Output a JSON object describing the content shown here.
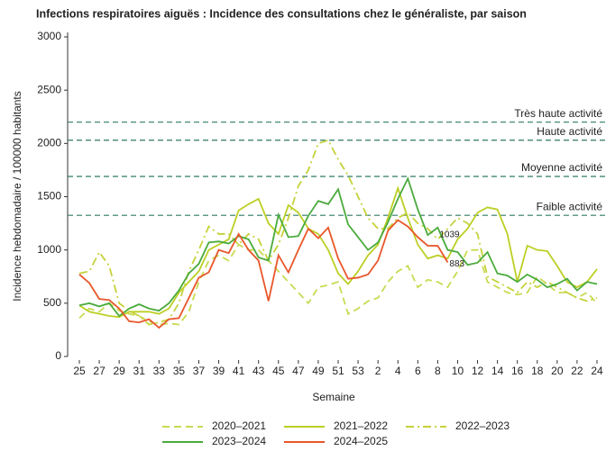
{
  "chart_data": {
    "type": "line",
    "title": "Infections respiratoires aiguës : Incidence des consultations chez le généraliste, par saison",
    "x_label": "Semaine",
    "y_label": "Incidence hebdomadaire / 100000 habitants",
    "categories": [
      "25",
      null,
      "27",
      null,
      "29",
      null,
      "31",
      null,
      "33",
      null,
      "35",
      null,
      "37",
      null,
      "39",
      null,
      "41",
      null,
      "43",
      null,
      "45",
      null,
      "47",
      null,
      "49",
      null,
      "51",
      null,
      "53",
      null,
      "2",
      null,
      "4",
      null,
      "6",
      null,
      "8",
      null,
      "10",
      null,
      "12",
      null,
      "14",
      null,
      "16",
      null,
      "18",
      null,
      "20",
      null,
      "22",
      null,
      "24"
    ],
    "ylim": [
      0,
      3000
    ],
    "yticks": [
      0,
      500,
      1000,
      1500,
      2000,
      2500,
      3000
    ],
    "thresholds": [
      {
        "label": "Très haute activité",
        "value": 2200
      },
      {
        "label": "Haute activité",
        "value": 2030
      },
      {
        "label": "Moyenne activité",
        "value": 1690
      },
      {
        "label": "Faible activité",
        "value": 1325
      }
    ],
    "threshold_color": "#2f7a66",
    "series": [
      {
        "name": "2020–2021",
        "color": "#c9da52",
        "dash": "dashed",
        "values": [
          360,
          450,
          420,
          500,
          430,
          400,
          380,
          330,
          300,
          310,
          300,
          420,
          700,
          900,
          950,
          900,
          1050,
          1000,
          1000,
          900,
          800,
          700,
          600,
          500,
          650,
          670,
          700,
          400,
          450,
          520,
          550,
          700,
          800,
          850,
          650,
          720,
          700,
          650,
          800,
          1000,
          1000,
          700,
          650,
          600,
          580,
          600,
          750,
          680,
          600,
          600,
          550,
          600,
          500
        ]
      },
      {
        "name": "2021–2022",
        "color": "#bccf24",
        "dash": "solid",
        "values": [
          480,
          420,
          400,
          380,
          370,
          420,
          420,
          420,
          400,
          450,
          600,
          700,
          800,
          1000,
          1050,
          1100,
          1370,
          1430,
          1480,
          1250,
          1150,
          1420,
          1350,
          1200,
          1150,
          1000,
          780,
          680,
          800,
          950,
          1050,
          1300,
          1580,
          1300,
          1050,
          920,
          950,
          920,
          1100,
          1200,
          1350,
          1400,
          1380,
          1150,
          700,
          1040,
          1000,
          990,
          850,
          700,
          650,
          700,
          820
        ]
      },
      {
        "name": "2022–2023",
        "color": "#c5d23a",
        "dash": "dashdot",
        "values": [
          780,
          800,
          980,
          850,
          500,
          430,
          380,
          300,
          320,
          350,
          500,
          800,
          1000,
          1220,
          1150,
          1150,
          1050,
          1150,
          1100,
          900,
          1050,
          1300,
          1600,
          1750,
          2000,
          2030,
          1850,
          1700,
          1500,
          1300,
          1200,
          1200,
          1300,
          1350,
          1250,
          1200,
          1100,
          1200,
          1300,
          1250,
          1150,
          750,
          700,
          650,
          600,
          700,
          650,
          700,
          650,
          600,
          550,
          520,
          550
        ]
      },
      {
        "name": "2023–2024",
        "color": "#4aab3c",
        "dash": "solid",
        "values": [
          480,
          500,
          470,
          500,
          380,
          450,
          490,
          450,
          430,
          500,
          620,
          780,
          870,
          1070,
          1080,
          1060,
          1130,
          1100,
          930,
          900,
          1330,
          1120,
          1130,
          1320,
          1460,
          1430,
          1570,
          1240,
          1120,
          1000,
          1070,
          1260,
          1480,
          1670,
          1380,
          1140,
          1210,
          1000,
          980,
          860,
          880,
          980,
          780,
          760,
          700,
          770,
          720,
          650,
          680,
          730,
          620,
          700,
          680
        ]
      },
      {
        "name": "2024–2025",
        "color": "#e8572a",
        "dash": "solid",
        "values": [
          770,
          690,
          540,
          530,
          450,
          330,
          320,
          350,
          270,
          350,
          360,
          550,
          740,
          790,
          1000,
          970,
          1150,
          1000,
          900,
          520,
          950,
          790,
          1000,
          1200,
          1110,
          1210,
          920,
          730,
          740,
          770,
          900,
          1180,
          1280,
          1220,
          1120,
          1040,
          1039,
          883,
          null,
          null,
          null,
          null,
          null,
          null,
          null,
          null,
          null,
          null,
          null,
          null,
          null,
          null,
          null
        ],
        "labeled_points": [
          36,
          37
        ]
      }
    ]
  }
}
